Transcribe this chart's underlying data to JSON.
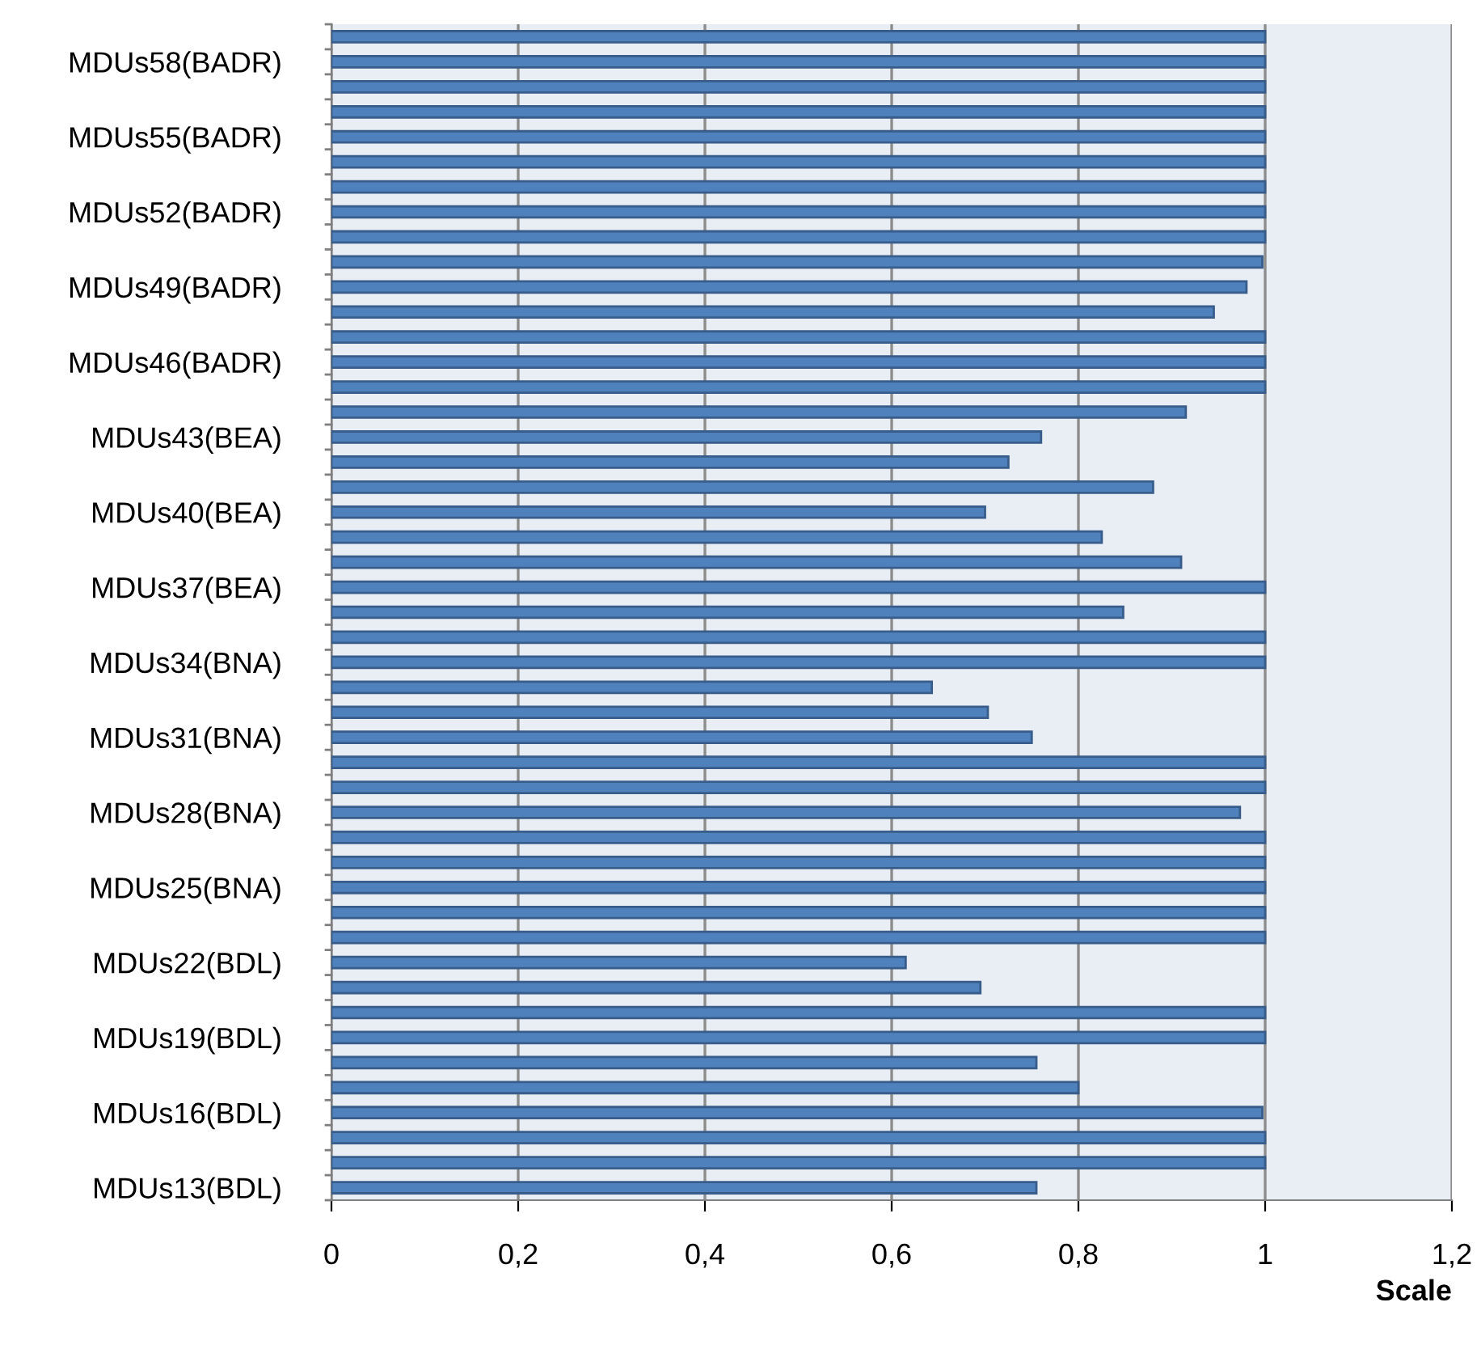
{
  "chart_data": {
    "type": "bar",
    "orientation": "horizontal",
    "xlabel": "Scale",
    "categories": [
      null,
      "MDUs58(BADR)",
      null,
      null,
      "MDUs55(BADR)",
      null,
      null,
      "MDUs52(BADR)",
      null,
      null,
      "MDUs49(BADR)",
      null,
      null,
      "MDUs46(BADR)",
      null,
      null,
      "MDUs43(BEA)",
      null,
      null,
      "MDUs40(BEA)",
      null,
      null,
      "MDUs37(BEA)",
      null,
      null,
      "MDUs34(BNA)",
      null,
      null,
      "MDUs31(BNA)",
      null,
      null,
      "MDUs28(BNA)",
      null,
      null,
      "MDUs25(BNA)",
      null,
      null,
      "MDUs22(BDL)",
      null,
      null,
      "MDUs19(BDL)",
      null,
      null,
      "MDUs16(BDL)",
      null,
      null,
      "MDUs13(BDL)"
    ],
    "values": [
      1,
      1,
      1,
      1,
      1,
      1,
      1,
      1,
      1,
      0.997,
      0.98,
      0.945,
      1,
      1,
      1,
      0.915,
      0.76,
      0.725,
      0.88,
      0.7,
      0.825,
      0.91,
      1,
      0.848,
      1,
      1,
      0.643,
      0.703,
      0.75,
      1,
      1,
      0.973,
      1,
      1,
      1,
      1,
      1,
      0.615,
      0.695,
      1,
      1,
      0.755,
      0.8,
      0.997,
      1,
      1,
      0.755
    ],
    "color": "#4f81bd",
    "xlim": [
      0,
      1.2
    ],
    "xticks": [
      0,
      {
        "value": 0.2,
        "label": "0,2"
      },
      {
        "value": 0.4,
        "label": "0,4"
      },
      {
        "value": 0.6,
        "label": "0,6"
      },
      {
        "value": 0.8,
        "label": "0,8"
      },
      1,
      {
        "value": 1.2,
        "label": "1,2"
      }
    ],
    "grid": "x",
    "legend": false
  }
}
